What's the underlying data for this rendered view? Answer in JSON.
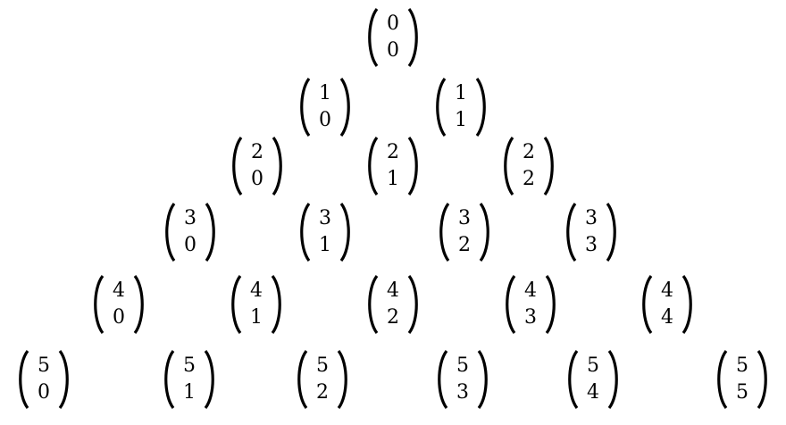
{
  "rows": [
    [
      {
        "n": "0",
        "k": "0"
      }
    ],
    [
      {
        "n": "1",
        "k": "0"
      },
      {
        "n": "1",
        "k": "1"
      }
    ],
    [
      {
        "n": "2",
        "k": "0"
      },
      {
        "n": "2",
        "k": "1"
      },
      {
        "n": "2",
        "k": "2"
      }
    ],
    [
      {
        "n": "3",
        "k": "0"
      },
      {
        "n": "3",
        "k": "1"
      },
      {
        "n": "3",
        "k": "2"
      },
      {
        "n": "3",
        "k": "3"
      }
    ],
    [
      {
        "n": "4",
        "k": "0"
      },
      {
        "n": "4",
        "k": "1"
      },
      {
        "n": "4",
        "k": "2"
      },
      {
        "n": "4",
        "k": "3"
      },
      {
        "n": "4",
        "k": "4"
      }
    ],
    [
      {
        "n": "5",
        "k": "0"
      },
      {
        "n": "5",
        "k": "1"
      },
      {
        "n": "5",
        "k": "2"
      },
      {
        "n": "5",
        "k": "3"
      },
      {
        "n": "5",
        "k": "4"
      },
      {
        "n": "5",
        "k": "5"
      }
    ]
  ]
}
